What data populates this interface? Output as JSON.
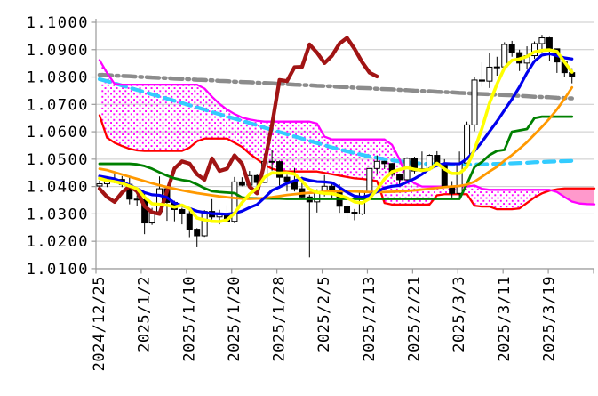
{
  "chart_data": {
    "type": "candlestick",
    "title": "",
    "description": "Daily EUR/USD-style candlestick chart with Ichimoku cloud and moving-average overlays",
    "grid": true,
    "legend": "none",
    "y_axis": {
      "min": 1.01,
      "max": 1.1,
      "tick_step": 0.01,
      "ticks": [
        "1.1000",
        "1.0900",
        "1.0800",
        "1.0700",
        "1.0600",
        "1.0500",
        "1.0400",
        "1.0300",
        "1.0200",
        "1.0100"
      ]
    },
    "x_axis": {
      "labels": [
        {
          "text": "2024/12/25",
          "index": 0
        },
        {
          "text": "2025/1/2",
          "index": 6
        },
        {
          "text": "2025/1/10",
          "index": 12
        },
        {
          "text": "2025/1/20",
          "index": 18
        },
        {
          "text": "2025/1/28",
          "index": 24
        },
        {
          "text": "2025/2/5",
          "index": 30
        },
        {
          "text": "2025/2/13",
          "index": 36
        },
        {
          "text": "2025/2/21",
          "index": 42
        },
        {
          "text": "2025/3/3",
          "index": 48
        },
        {
          "text": "2025/3/11",
          "index": 54
        },
        {
          "text": "2025/3/19",
          "index": 60
        }
      ],
      "num_candles": 64
    },
    "candles": {
      "open": [
        1.0402,
        1.041,
        1.0422,
        1.0426,
        1.0408,
        1.0354,
        1.0352,
        1.0267,
        1.0308,
        1.0392,
        1.0342,
        1.0316,
        1.0301,
        1.0244,
        1.022,
        1.0309,
        1.0289,
        1.03,
        1.0273,
        1.0417,
        1.0405,
        1.044,
        1.0415,
        1.0492,
        1.0491,
        1.0434,
        1.042,
        1.0392,
        1.0362,
        1.0344,
        1.0378,
        1.0401,
        1.0383,
        1.0328,
        1.0306,
        1.03,
        1.0382,
        1.0466,
        1.0492,
        1.0484,
        1.0445,
        1.0425,
        1.0503,
        1.0457,
        1.0465,
        1.0514,
        1.0484,
        1.04,
        1.0375,
        1.0486,
        1.0625,
        1.0789,
        1.0785,
        1.0836,
        1.0837,
        1.0919,
        1.0889,
        1.0851,
        1.0878,
        1.0922,
        1.0943,
        1.0903,
        1.0855,
        1.0816
      ],
      "high": [
        1.0422,
        1.0432,
        1.0445,
        1.0438,
        1.044,
        1.0368,
        1.0374,
        1.0322,
        1.0437,
        1.0396,
        1.0348,
        1.0322,
        1.0312,
        1.0248,
        1.0314,
        1.0354,
        1.0315,
        1.0332,
        1.0435,
        1.0434,
        1.0457,
        1.0444,
        1.0521,
        1.0533,
        1.0495,
        1.0443,
        1.0468,
        1.0436,
        1.037,
        1.039,
        1.0442,
        1.0412,
        1.0408,
        1.0336,
        1.0318,
        1.0385,
        1.0467,
        1.0514,
        1.0494,
        1.0486,
        1.0448,
        1.0507,
        1.0509,
        1.0528,
        1.0518,
        1.0529,
        1.05,
        1.042,
        1.0528,
        1.0637,
        1.08,
        1.0854,
        1.0888,
        1.0874,
        1.0927,
        1.0932,
        1.09,
        1.0912,
        1.093,
        1.0954,
        1.0946,
        1.0904,
        1.086,
        1.0832
      ],
      "low": [
        1.0388,
        1.0398,
        1.0412,
        1.0398,
        1.0335,
        1.033,
        1.0226,
        1.026,
        1.0294,
        1.0275,
        1.0273,
        1.0262,
        1.0215,
        1.0178,
        1.0216,
        1.028,
        1.0262,
        1.027,
        1.0266,
        1.0401,
        1.04,
        1.0373,
        1.0413,
        1.0458,
        1.0404,
        1.0382,
        1.0382,
        1.036,
        1.0141,
        1.0305,
        1.0364,
        1.0357,
        1.0304,
        1.028,
        1.0277,
        1.0296,
        1.0375,
        1.0445,
        1.0464,
        1.0436,
        1.0401,
        1.0421,
        1.0448,
        1.0453,
        1.0461,
        1.0471,
        1.0395,
        1.036,
        1.0359,
        1.0468,
        1.0602,
        1.0765,
        1.076,
        1.0805,
        1.0833,
        1.0874,
        1.0822,
        1.083,
        1.0867,
        1.0888,
        1.0858,
        1.0815,
        1.08,
        1.0777
      ],
      "close": [
        1.041,
        1.0422,
        1.0426,
        1.0408,
        1.0354,
        1.0352,
        1.0267,
        1.0308,
        1.0392,
        1.0342,
        1.0316,
        1.0301,
        1.0244,
        1.022,
        1.0309,
        1.0289,
        1.03,
        1.0273,
        1.0417,
        1.0405,
        1.044,
        1.0415,
        1.0492,
        1.0491,
        1.0434,
        1.042,
        1.0392,
        1.0362,
        1.0344,
        1.0378,
        1.0401,
        1.0383,
        1.0328,
        1.0306,
        1.03,
        1.0382,
        1.0466,
        1.0492,
        1.0484,
        1.0445,
        1.0425,
        1.0503,
        1.0457,
        1.0465,
        1.0514,
        1.0484,
        1.04,
        1.0375,
        1.0486,
        1.0625,
        1.0789,
        1.0785,
        1.0836,
        1.0837,
        1.0919,
        1.0889,
        1.0851,
        1.0878,
        1.0922,
        1.0943,
        1.0903,
        1.0855,
        1.0816,
        1.0802
      ],
      "up_fill": "#ffffff",
      "down_fill": "#000000",
      "outline": "#000000"
    },
    "overlays": [
      {
        "name": "senkou-span-a",
        "color": "#ff00ff",
        "style": "solid",
        "width": 2.3,
        "values": [
          1.0862,
          1.0815,
          1.0775,
          1.0772,
          1.0772,
          1.0772,
          1.0772,
          1.0772,
          1.0772,
          1.0772,
          1.0772,
          1.0772,
          1.0772,
          1.0772,
          1.0758,
          1.0728,
          1.0702,
          1.0681,
          1.0665,
          1.0652,
          1.0645,
          1.064,
          1.0637,
          1.0637,
          1.0637,
          1.0637,
          1.0637,
          1.0637,
          1.0637,
          1.063,
          1.0582,
          1.0572,
          1.0572,
          1.0572,
          1.0572,
          1.0572,
          1.0572,
          1.0572,
          1.0572,
          1.0552,
          1.05,
          1.043,
          1.0412,
          1.04,
          1.04,
          1.04,
          1.04,
          1.04,
          1.04,
          1.04,
          1.0404,
          1.0392,
          1.0388,
          1.0388,
          1.0388,
          1.0388,
          1.0388,
          1.0388,
          1.0388,
          1.0388,
          1.0388,
          1.038,
          1.0362,
          1.0345,
          1.0338,
          1.0336,
          1.0335
        ]
      },
      {
        "name": "senkou-span-b",
        "color": "#ff0000",
        "style": "solid",
        "width": 2.3,
        "values": [
          1.066,
          1.0578,
          1.056,
          1.0548,
          1.0538,
          1.0532,
          1.053,
          1.053,
          1.053,
          1.053,
          1.053,
          1.053,
          1.0542,
          1.0565,
          1.0575,
          1.0575,
          1.0575,
          1.0575,
          1.056,
          1.0545,
          1.052,
          1.05,
          1.048,
          1.0465,
          1.0458,
          1.0455,
          1.0455,
          1.0455,
          1.0455,
          1.0455,
          1.045,
          1.0445,
          1.044,
          1.0435,
          1.043,
          1.0428,
          1.0425,
          1.042,
          1.034,
          1.0334,
          1.0334,
          1.0334,
          1.0334,
          1.0334,
          1.0334,
          1.0368,
          1.0372,
          1.0372,
          1.0372,
          1.0372,
          1.033,
          1.0327,
          1.0327,
          1.0317,
          1.0317,
          1.0317,
          1.032,
          1.034,
          1.036,
          1.0375,
          1.0385,
          1.039,
          1.0393,
          1.0393,
          1.0393,
          1.0393,
          1.0393
        ]
      },
      {
        "name": "chikou-span",
        "color": "#a11414",
        "style": "solid",
        "width": 4.3,
        "values": [
          1.0392,
          1.0362,
          1.0344,
          1.0378,
          1.0401,
          1.0383,
          1.0328,
          1.0306,
          1.03,
          1.0382,
          1.0466,
          1.0492,
          1.0484,
          1.0445,
          1.0425,
          1.0503,
          1.0457,
          1.0465,
          1.0514,
          1.0484,
          1.04,
          1.0375,
          1.0486,
          1.0625,
          1.0789,
          1.0785,
          1.0836,
          1.0837,
          1.0919,
          1.0889,
          1.0851,
          1.0878,
          1.0922,
          1.0943,
          1.0903,
          1.0855,
          1.0816,
          1.0802
        ]
      },
      {
        "name": "kijun-sen",
        "color": "#008000",
        "style": "solid",
        "width": 2.8,
        "values": [
          1.0483,
          1.0483,
          1.0483,
          1.0483,
          1.0483,
          1.0481,
          1.0475,
          1.0465,
          1.0452,
          1.044,
          1.043,
          1.0424,
          1.042,
          1.0408,
          1.0394,
          1.0383,
          1.038,
          1.0378,
          1.0376,
          1.036,
          1.0357,
          1.0357,
          1.0357,
          1.0356,
          1.0356,
          1.0355,
          1.0355,
          1.0355,
          1.0355,
          1.0355,
          1.0355,
          1.0355,
          1.0355,
          1.0355,
          1.0355,
          1.0355,
          1.0355,
          1.0355,
          1.0355,
          1.0355,
          1.0355,
          1.0355,
          1.0355,
          1.0355,
          1.0355,
          1.0355,
          1.0355,
          1.0355,
          1.0355,
          1.041,
          1.0471,
          1.049,
          1.0515,
          1.053,
          1.0534,
          1.06,
          1.0605,
          1.061,
          1.065,
          1.0655,
          1.0655,
          1.0655,
          1.0655,
          1.0655
        ]
      },
      {
        "name": "ma-slow-orange",
        "color": "#ff9900",
        "style": "solid",
        "width": 2.8,
        "values": [
          1.0465,
          1.046,
          1.0452,
          1.0444,
          1.0436,
          1.0428,
          1.042,
          1.0412,
          1.0405,
          1.0398,
          1.0392,
          1.0386,
          1.0381,
          1.0376,
          1.0372,
          1.0368,
          1.0364,
          1.0361,
          1.0358,
          1.0356,
          1.0355,
          1.0356,
          1.0358,
          1.0361,
          1.0365,
          1.0369,
          1.0372,
          1.0375,
          1.0377,
          1.0379,
          1.0381,
          1.0382,
          1.0383,
          1.0383,
          1.0382,
          1.0381,
          1.038,
          1.038,
          1.038,
          1.0381,
          1.0382,
          1.0384,
          1.0386,
          1.0389,
          1.0392,
          1.0395,
          1.0398,
          1.04,
          1.0402,
          1.0407,
          1.0418,
          1.0436,
          1.0455,
          1.0472,
          1.0495,
          1.0515,
          1.0538,
          1.0562,
          1.059,
          1.0618,
          1.0648,
          1.0682,
          1.072,
          1.0762
        ]
      },
      {
        "name": "ma-mid-blue",
        "color": "#0000ee",
        "style": "solid",
        "width": 3.2,
        "values": [
          1.0438,
          1.0433,
          1.0428,
          1.0418,
          1.0405,
          1.0392,
          1.0378,
          1.037,
          1.0368,
          1.036,
          1.034,
          1.033,
          1.032,
          1.031,
          1.0305,
          1.0301,
          1.03,
          1.0299,
          1.0302,
          1.031,
          1.0323,
          1.0334,
          1.0359,
          1.0386,
          1.0398,
          1.0412,
          1.0421,
          1.043,
          1.0423,
          1.0418,
          1.0417,
          1.0414,
          1.0397,
          1.0379,
          1.0365,
          1.0361,
          1.0368,
          1.0381,
          1.0395,
          1.0401,
          1.0404,
          1.0416,
          1.0429,
          1.0445,
          1.0466,
          1.0477,
          1.0484,
          1.0483,
          1.0483,
          1.0501,
          1.053,
          1.0563,
          1.0601,
          1.0638,
          1.0679,
          1.0719,
          1.0764,
          1.0815,
          1.0858,
          1.088,
          1.0885,
          1.0878,
          1.087,
          1.0866
        ]
      },
      {
        "name": "ma-short-yellow",
        "color": "#ffff00",
        "style": "solid",
        "width": 3.6,
        "values": [
          1.043,
          1.0422,
          1.0418,
          1.0412,
          1.0402,
          1.0392,
          1.0361,
          1.0337,
          1.0335,
          1.0332,
          1.0325,
          1.0332,
          1.0319,
          1.0285,
          1.0278,
          1.0273,
          1.0272,
          1.0278,
          1.0302,
          1.0341,
          1.0372,
          1.0394,
          1.0434,
          1.045,
          1.0449,
          1.045,
          1.0446,
          1.042,
          1.039,
          1.0379,
          1.0375,
          1.0374,
          1.0367,
          1.0359,
          1.0344,
          1.034,
          1.0356,
          1.0389,
          1.0428,
          1.0454,
          1.0462,
          1.0469,
          1.0463,
          1.0459,
          1.0463,
          1.0485,
          1.0464,
          1.0448,
          1.0448,
          1.0472,
          1.0535,
          1.0612,
          1.0704,
          1.0774,
          1.0833,
          1.0861,
          1.0866,
          1.0875,
          1.0892,
          1.0897,
          1.0899,
          1.0893,
          1.0855,
          1.0818
        ]
      },
      {
        "name": "ma-100-cyan",
        "color": "#33ccff",
        "style": "dashed",
        "width": 4.2,
        "values": [
          1.0792,
          1.0785,
          1.0777,
          1.0769,
          1.0761,
          1.0753,
          1.0745,
          1.0737,
          1.0729,
          1.0721,
          1.0713,
          1.0705,
          1.0697,
          1.0689,
          1.0681,
          1.0672,
          1.0664,
          1.0656,
          1.0648,
          1.064,
          1.0632,
          1.0624,
          1.0615,
          1.0607,
          1.0599,
          1.0591,
          1.0583,
          1.0575,
          1.0567,
          1.0559,
          1.0551,
          1.0543,
          1.0536,
          1.0529,
          1.0522,
          1.0516,
          1.051,
          1.0505,
          1.05,
          1.0496,
          1.0492,
          1.0489,
          1.0486,
          1.0484,
          1.0482,
          1.0481,
          1.048,
          1.048,
          1.048,
          1.048,
          1.0481,
          1.0481,
          1.0482,
          1.0483,
          1.0484,
          1.0485,
          1.0486,
          1.0487,
          1.0489,
          1.049,
          1.0491,
          1.0492,
          1.0493,
          1.0494
        ]
      },
      {
        "name": "ma-200-gray",
        "color": "#8c8c8c",
        "style": "dashdot",
        "width": 4.5,
        "values": [
          1.0808,
          1.0807,
          1.0805,
          1.0804,
          1.0803,
          1.0801,
          1.08,
          1.0798,
          1.0797,
          1.0796,
          1.0794,
          1.0793,
          1.0792,
          1.079,
          1.0789,
          1.0788,
          1.0786,
          1.0785,
          1.0783,
          1.0782,
          1.0781,
          1.0779,
          1.0778,
          1.0777,
          1.0775,
          1.0774,
          1.0772,
          1.0771,
          1.077,
          1.0768,
          1.0767,
          1.0766,
          1.0764,
          1.0763,
          1.0761,
          1.076,
          1.0759,
          1.0757,
          1.0756,
          1.0755,
          1.0753,
          1.0752,
          1.075,
          1.0749,
          1.0748,
          1.0746,
          1.0745,
          1.0744,
          1.0742,
          1.0741,
          1.0739,
          1.0738,
          1.0737,
          1.0735,
          1.0734,
          1.0733,
          1.0731,
          1.073,
          1.0728,
          1.0727,
          1.0726,
          1.0724,
          1.0723,
          1.0722
        ]
      }
    ],
    "cloud": {
      "upper_series": "senkou-span-a",
      "lower_series": "senkou-span-b",
      "bullish_fill": "magenta-dot-pattern",
      "bearish_fill": "#ff99cc",
      "cross_index": 60
    },
    "colors": {
      "background": "#ffffff",
      "gridline": "#c9c9c9",
      "axis": "#9a9a9a",
      "text": "#000000",
      "cloud_dot": "#ff00ff",
      "cloud_bearish": "#ff99cc"
    }
  }
}
